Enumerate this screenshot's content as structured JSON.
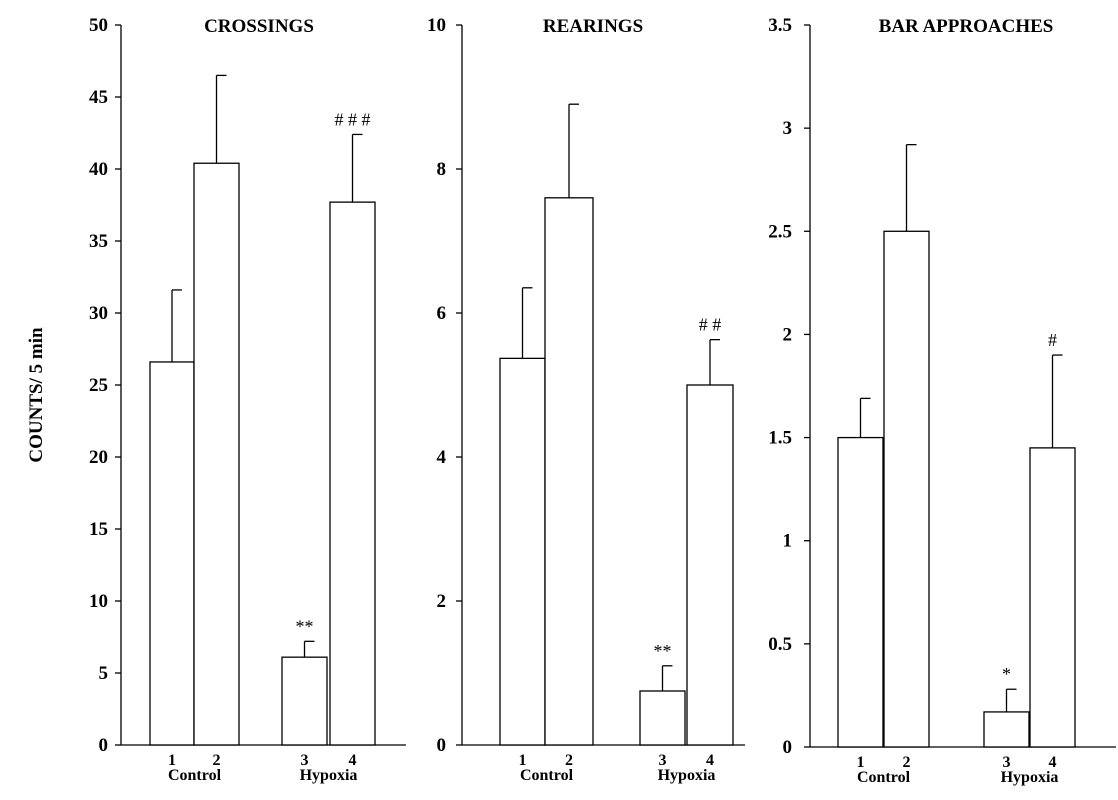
{
  "figure": {
    "ylabel": "COUNTS/ 5 min"
  },
  "chart_data": [
    {
      "type": "bar",
      "title": "CROSSINGS",
      "ylim": [
        0,
        50
      ],
      "yticks": [
        "0",
        "5",
        "10",
        "15",
        "20",
        "25",
        "30",
        "35",
        "40",
        "45",
        "50"
      ],
      "tick_values": [
        0,
        5,
        10,
        15,
        20,
        25,
        30,
        35,
        40,
        45,
        50
      ],
      "categories": [
        "1",
        "2",
        "3",
        "4"
      ],
      "groups": [
        {
          "label": "Control",
          "categories": [
            "1",
            "2"
          ]
        },
        {
          "label": "Hypoxia",
          "categories": [
            "3",
            "4"
          ]
        }
      ],
      "values": [
        26.6,
        40.4,
        6.1,
        37.7
      ],
      "errors": [
        5.0,
        6.1,
        1.1,
        4.7
      ],
      "significance": [
        "",
        "",
        "**",
        "# # #"
      ]
    },
    {
      "type": "bar",
      "title": "REARINGS",
      "ylim": [
        0,
        10
      ],
      "yticks": [
        "0",
        "2",
        "4",
        "6",
        "8",
        "10"
      ],
      "tick_values": [
        0,
        2,
        4,
        6,
        8,
        10
      ],
      "categories": [
        "1",
        "2",
        "3",
        "4"
      ],
      "groups": [
        {
          "label": "Control",
          "categories": [
            "1",
            "2"
          ]
        },
        {
          "label": "Hypoxia",
          "categories": [
            "3",
            "4"
          ]
        }
      ],
      "values": [
        5.37,
        7.6,
        0.75,
        5.0
      ],
      "errors": [
        0.98,
        1.3,
        0.35,
        0.63
      ],
      "significance": [
        "",
        "",
        "**",
        "# #"
      ]
    },
    {
      "type": "bar",
      "title": "BAR APPROACHES",
      "ylim": [
        0,
        3.5
      ],
      "yticks": [
        "0",
        "0.5",
        "1",
        "1.5",
        "2",
        "2.5",
        "3",
        "3.5"
      ],
      "tick_values": [
        0,
        0.5,
        1,
        1.5,
        2,
        2.5,
        3,
        3.5
      ],
      "categories": [
        "1",
        "2",
        "3",
        "4"
      ],
      "groups": [
        {
          "label": "Control",
          "categories": [
            "1",
            "2"
          ]
        },
        {
          "label": "Hypoxia",
          "categories": [
            "3",
            "4"
          ]
        }
      ],
      "values": [
        1.5,
        2.5,
        0.17,
        1.45
      ],
      "errors": [
        0.19,
        0.42,
        0.11,
        0.45
      ],
      "significance": [
        "",
        "",
        "*",
        "#"
      ]
    }
  ]
}
